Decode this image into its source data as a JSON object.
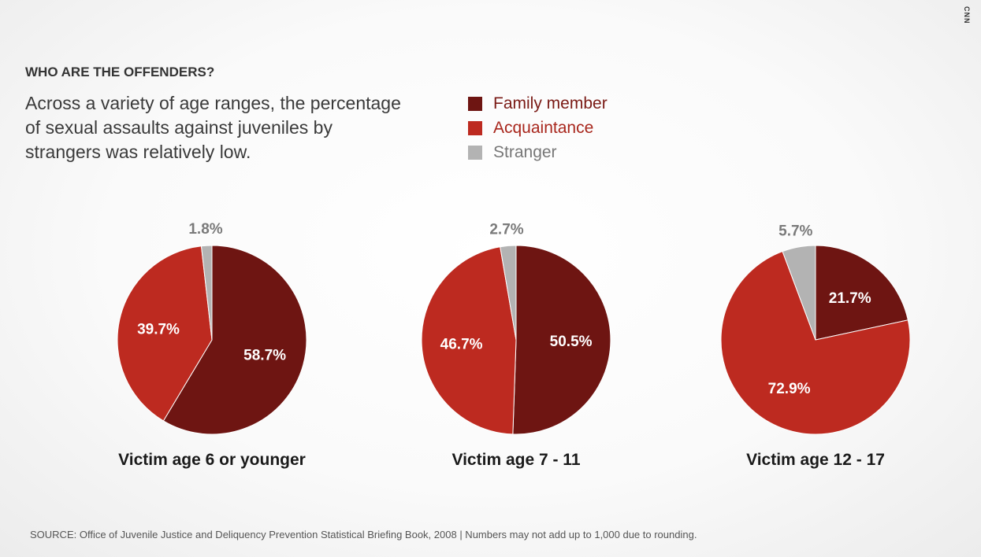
{
  "brand": "CNN",
  "heading": "WHO ARE THE OFFENDERS?",
  "description": "Across a variety of age ranges, the percentage of sexual assaults against juveniles by strangers was relatively low.",
  "legend": [
    {
      "label": "Family member",
      "color": "#6e1512",
      "text_color": "#7a1a15"
    },
    {
      "label": "Acquaintance",
      "color": "#bd2a20",
      "text_color": "#a8261c"
    },
    {
      "label": "Stranger",
      "color": "#b3b3b3",
      "text_color": "#777777"
    }
  ],
  "chart_data": [
    {
      "type": "pie",
      "title": "Victim age 6 or younger",
      "categories": [
        "Family member",
        "Acquaintance",
        "Stranger"
      ],
      "values": [
        58.7,
        39.7,
        1.8
      ],
      "labels": [
        "58.7%",
        "39.7%",
        "1.8%"
      ],
      "colors": [
        "#6e1512",
        "#bd2a20",
        "#b3b3b3"
      ]
    },
    {
      "type": "pie",
      "title": "Victim age 7 - 11",
      "categories": [
        "Family member",
        "Acquaintance",
        "Stranger"
      ],
      "values": [
        50.5,
        46.7,
        2.7
      ],
      "labels": [
        "50.5%",
        "46.7%",
        "2.7%"
      ],
      "colors": [
        "#6e1512",
        "#bd2a20",
        "#b3b3b3"
      ]
    },
    {
      "type": "pie",
      "title": "Victim age 12 - 17",
      "categories": [
        "Family member",
        "Acquaintance",
        "Stranger"
      ],
      "values": [
        21.7,
        72.9,
        5.7
      ],
      "labels": [
        "21.7%",
        "72.9%",
        "5.7%"
      ],
      "colors": [
        "#6e1512",
        "#bd2a20",
        "#b3b3b3"
      ]
    }
  ],
  "source": "SOURCE: Office of Juvenile Justice and Deliquency Prevention Statistical Briefing Book, 2008 | Numbers may not add up to 1,000 due to rounding."
}
